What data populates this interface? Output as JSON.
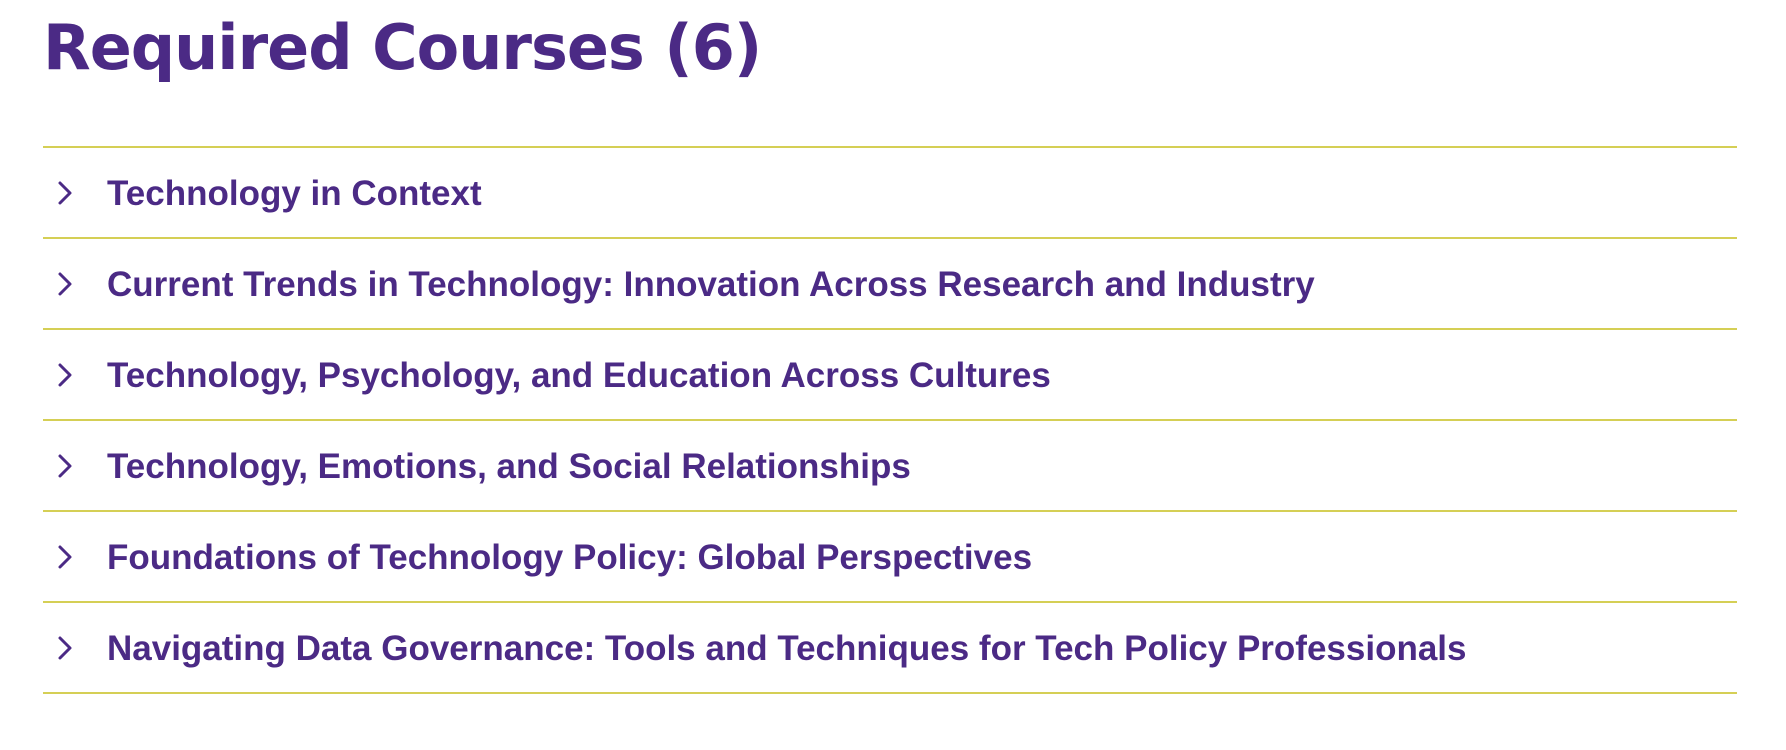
{
  "section": {
    "title": "Required Courses (6)"
  },
  "courses": [
    {
      "title": "Technology in Context",
      "expanded": false
    },
    {
      "title": "Current Trends in Technology: Innovation Across Research and Industry",
      "expanded": false
    },
    {
      "title": "Technology, Psychology, and Education Across Cultures",
      "expanded": false
    },
    {
      "title": "Technology, Emotions, and Social Relationships",
      "expanded": false
    },
    {
      "title": "Foundations of Technology Policy: Global Perspectives",
      "expanded": false
    },
    {
      "title": "Navigating Data Governance: Tools and Techniques for Tech Policy Professionals",
      "expanded": false
    }
  ],
  "icons": {
    "toggle": "chevron-right-icon"
  },
  "colors": {
    "heading": "#4b2a85",
    "divider": "#d5cf55",
    "background": "#ffffff"
  }
}
